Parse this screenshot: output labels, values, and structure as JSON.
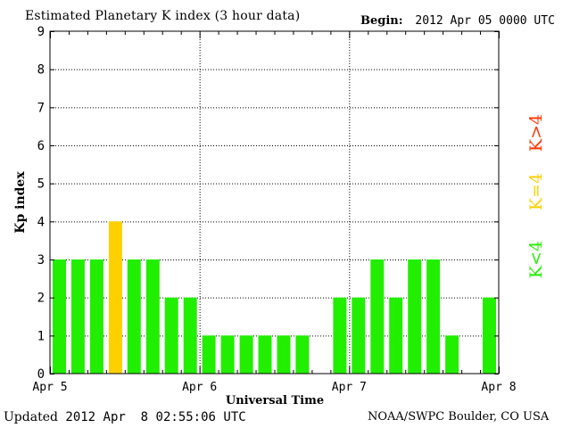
{
  "header": {
    "title": "Estimated Planetary K index (3 hour data)",
    "begin_label": "Begin:",
    "begin_value": "2012 Apr 05 0000 UTC"
  },
  "footer": {
    "updated_label": "Updated",
    "updated_value": "2012 Apr  8 02:55:06 UTC",
    "credit": "NOAA/SWPC Boulder, CO USA"
  },
  "legend": {
    "low": "K<4",
    "equal": "K=4",
    "high": "K>4"
  },
  "colors": {
    "low": "#22ee00",
    "equal": "#ffd000",
    "high": "#ff3300"
  },
  "chart_data": {
    "type": "bar",
    "title": "Estimated Planetary K index (3 hour data)",
    "xlabel": "Universal Time",
    "ylabel": "Kp index",
    "ylim": [
      0,
      9
    ],
    "yticks": [
      "0",
      "1",
      "2",
      "3",
      "4",
      "5",
      "6",
      "7",
      "8",
      "9"
    ],
    "xticks": [
      "Apr 5",
      "Apr 6",
      "Apr 7",
      "Apr 8"
    ],
    "grid": true,
    "values": [
      3,
      3,
      3,
      4,
      3,
      3,
      2,
      2,
      1,
      1,
      1,
      1,
      1,
      1,
      0,
      2,
      2,
      3,
      2,
      3,
      3,
      1,
      0,
      2
    ]
  }
}
